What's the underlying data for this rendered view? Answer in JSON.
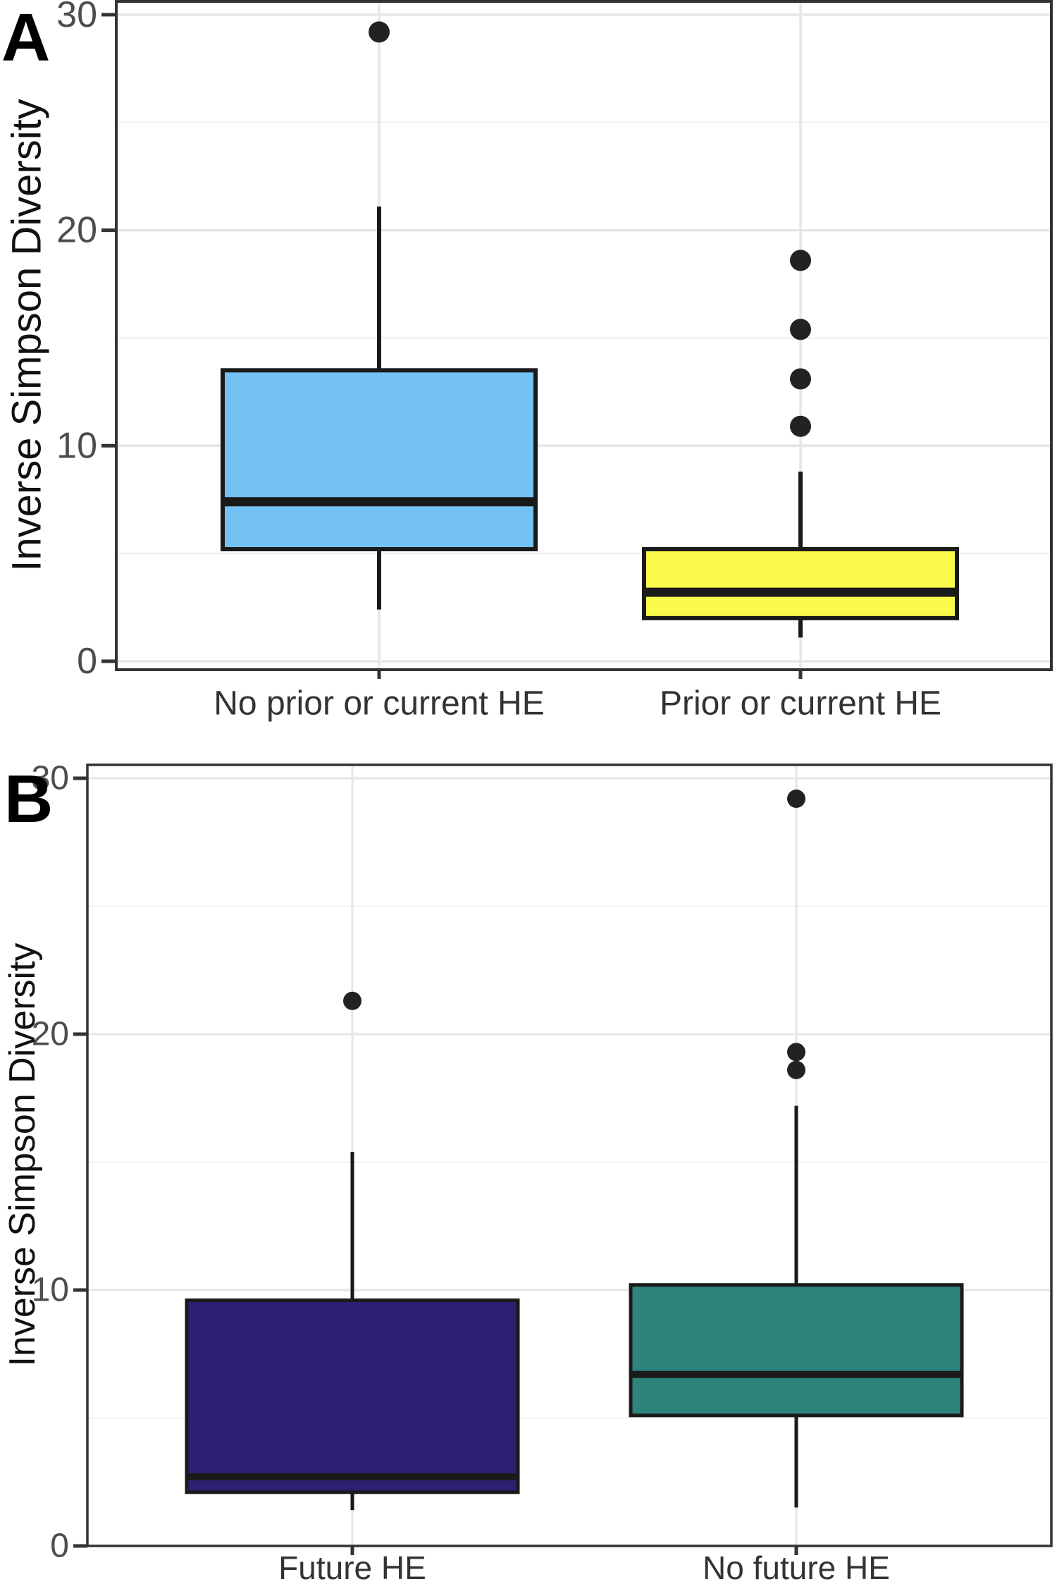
{
  "figure": {
    "panel_a_letter": "A",
    "panel_b_letter": "B"
  },
  "colors": {
    "background": "#ffffff",
    "panel_border": "#333333",
    "grid_major": "#e6e6e6",
    "grid_minor": "#f2f2f2",
    "box_stroke": "#1a1a1a",
    "outlier_dot": "#222222",
    "tick_label": "#4d4d4d",
    "tick_mark": "#333333"
  },
  "chart_data": [
    {
      "type": "boxplot",
      "panel": "A",
      "title": "",
      "xlabel": "",
      "ylabel": "Inverse Simpson Diversity",
      "ylim": [
        0,
        30.6
      ],
      "yticks": [
        0,
        10,
        20,
        30
      ],
      "yticks_minor": [
        5,
        15,
        25
      ],
      "grid": "horizontal major+minor, vertical at categories",
      "legend": "none",
      "categories": [
        "No prior or current HE",
        "Prior or current HE"
      ],
      "series": [
        {
          "name": "No prior or current HE",
          "color": "#73C2F3",
          "whisker_low": 2.4,
          "q1": 5.2,
          "median": 7.4,
          "q3": 13.5,
          "whisker_high": 21.1,
          "outliers": [
            29.2
          ]
        },
        {
          "name": "Prior or current HE",
          "color": "#FAFA4D",
          "whisker_low": 1.1,
          "q1": 2.0,
          "median": 3.2,
          "q3": 5.2,
          "whisker_high": 8.8,
          "outliers": [
            10.9,
            13.1,
            15.4,
            18.6
          ]
        }
      ]
    },
    {
      "type": "boxplot",
      "panel": "B",
      "title": "",
      "xlabel": "",
      "ylabel": "Inverse Simpson Diversity",
      "ylim": [
        0,
        30.5
      ],
      "yticks": [
        0,
        10,
        20,
        30
      ],
      "yticks_minor": [
        5,
        15,
        25
      ],
      "grid": "horizontal major+minor, vertical at categories",
      "legend": "none",
      "categories": [
        "Future HE",
        "No future HE"
      ],
      "series": [
        {
          "name": "Future HE",
          "color": "#2E2073",
          "whisker_low": 1.4,
          "q1": 2.1,
          "median": 2.7,
          "q3": 9.6,
          "whisker_high": 15.4,
          "outliers": [
            21.3
          ]
        },
        {
          "name": "No future HE",
          "color": "#2E837C",
          "whisker_low": 1.5,
          "q1": 5.1,
          "median": 6.7,
          "q3": 10.2,
          "whisker_high": 17.2,
          "outliers": [
            18.6,
            19.3,
            29.2
          ]
        }
      ]
    }
  ]
}
